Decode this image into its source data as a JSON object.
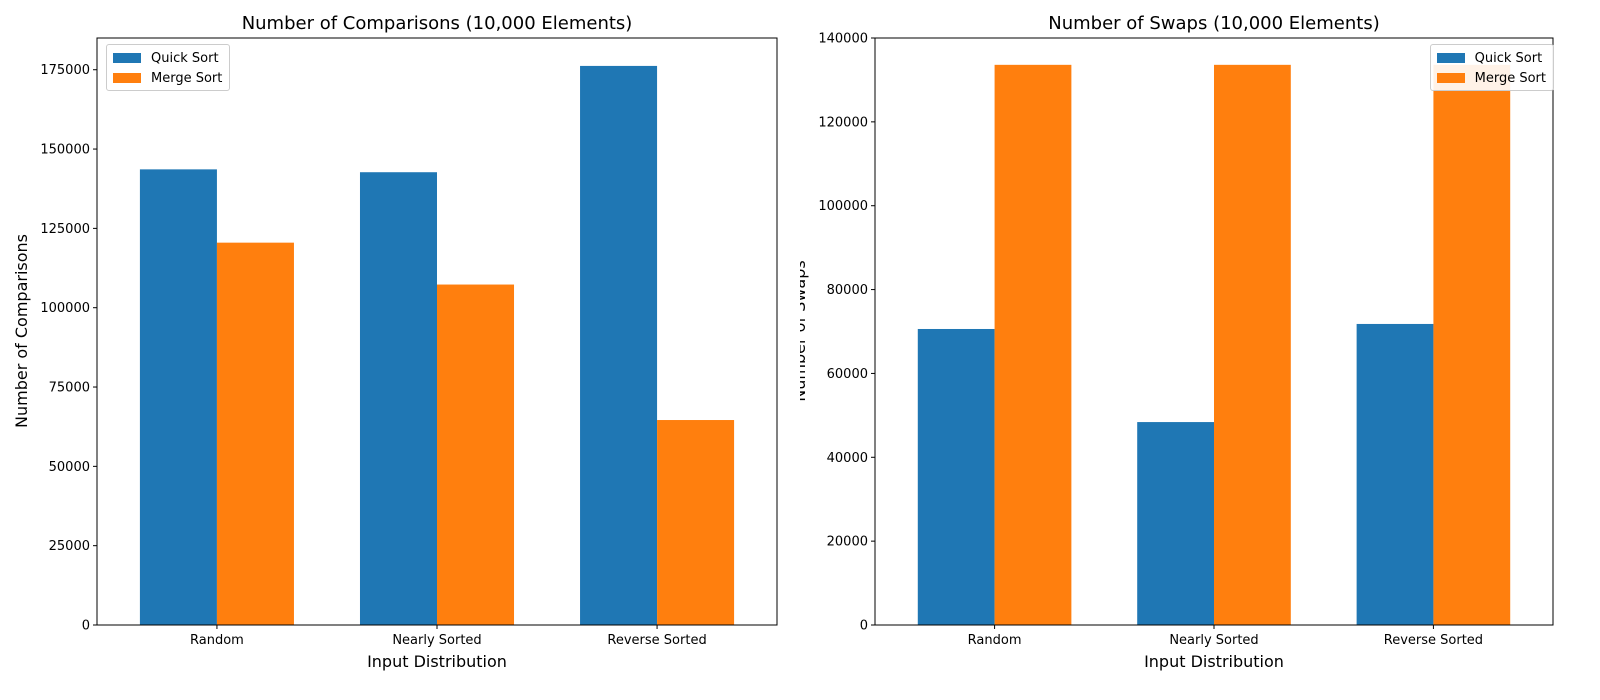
{
  "colors": {
    "quick_sort": "#1f77b4",
    "merge_sort": "#ff7f0e"
  },
  "chart_data": [
    {
      "type": "bar",
      "title": "Number of Comparisons (10,000 Elements)",
      "xlabel": "Input Distribution",
      "ylabel": "Number of Comparisons",
      "categories": [
        "Random",
        "Nearly Sorted",
        "Reverse Sorted"
      ],
      "series": [
        {
          "name": "Quick Sort",
          "color": "#1f77b4",
          "values": [
            143600,
            142700,
            176200
          ]
        },
        {
          "name": "Merge Sort",
          "color": "#ff7f0e",
          "values": [
            120500,
            107300,
            64600
          ]
        }
      ],
      "ylim": [
        0,
        185000
      ],
      "yticks": [
        0,
        25000,
        50000,
        75000,
        100000,
        125000,
        150000,
        175000
      ],
      "ytick_labels": [
        "0",
        "25000",
        "50000",
        "75000",
        "100000",
        "125000",
        "150000",
        "175000"
      ],
      "legend_position": "top-left",
      "grid": false
    },
    {
      "type": "bar",
      "title": "Number of Swaps (10,000 Elements)",
      "xlabel": "Input Distribution",
      "ylabel": "Number of Swaps",
      "categories": [
        "Random",
        "Nearly Sorted",
        "Reverse Sorted"
      ],
      "series": [
        {
          "name": "Quick Sort",
          "color": "#1f77b4",
          "values": [
            70600,
            48400,
            71800
          ]
        },
        {
          "name": "Merge Sort",
          "color": "#ff7f0e",
          "values": [
            133600,
            133600,
            133600
          ]
        }
      ],
      "ylim": [
        0,
        140000
      ],
      "yticks": [
        0,
        20000,
        40000,
        60000,
        80000,
        100000,
        120000,
        140000
      ],
      "ytick_labels": [
        "0",
        "20000",
        "40000",
        "60000",
        "80000",
        "100000",
        "120000",
        "140000"
      ],
      "legend_position": "top-right",
      "grid": false
    }
  ]
}
